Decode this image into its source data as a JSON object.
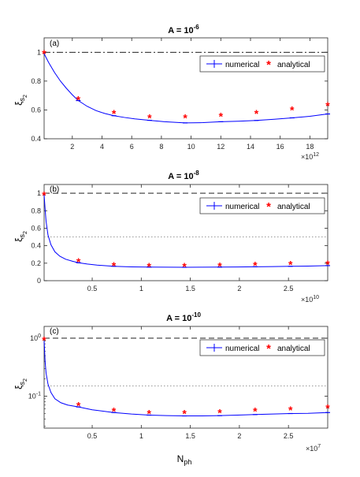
{
  "figure": {
    "xlabel_main": "N",
    "xlabel_sub": "ph",
    "ylabel_main": "ξ",
    "ylabel_sub1": "s",
    "ylabel_sub2": "2"
  },
  "colors": {
    "numerical": "#0000ff",
    "analytical": "#ff0000",
    "axes": "#262626"
  },
  "legend_labels": {
    "numerical": "numerical",
    "analytical": "analytical"
  },
  "chart_data": [
    {
      "type": "line",
      "panel_label": "(a)",
      "title_base": "A = 10",
      "title_exp": "-6",
      "xlim": [
        0.1,
        19.2
      ],
      "ylim": [
        0.4,
        1.1
      ],
      "yscale": "linear",
      "x_multiplier": {
        "base": "×10",
        "exp": "12"
      },
      "xticks": [
        2,
        4,
        6,
        8,
        10,
        12,
        14,
        16,
        18
      ],
      "xtick_labels": [
        "2",
        "4",
        "6",
        "8",
        "10",
        "12",
        "14",
        "16",
        "18"
      ],
      "yticks": [
        0.4,
        0.6,
        0.8,
        1
      ],
      "ytick_labels": [
        "0.4",
        "0.6",
        "0.8",
        "1"
      ],
      "ref_lines": [
        {
          "y": 1.0,
          "style": "dashdot"
        }
      ],
      "legend_position": "top-right",
      "series": [
        {
          "name": "numerical",
          "style": "line-errorbar",
          "x": [
            0.1,
            0.4,
            0.8,
            1.2,
            1.6,
            2.0,
            2.4,
            3.0,
            3.6,
            4.2,
            4.8,
            5.5,
            6.2,
            7.2,
            8.2,
            9.6,
            10.8,
            12.0,
            13.2,
            14.4,
            15.6,
            16.8,
            18.0,
            19.2
          ],
          "y": [
            0.99,
            0.93,
            0.86,
            0.8,
            0.75,
            0.705,
            0.665,
            0.625,
            0.595,
            0.575,
            0.56,
            0.548,
            0.538,
            0.528,
            0.518,
            0.51,
            0.512,
            0.518,
            0.522,
            0.527,
            0.535,
            0.545,
            0.556,
            0.572
          ],
          "errorbar_x": [
            2.4,
            4.8,
            7.2,
            9.6,
            12.0,
            14.4,
            16.8,
            19.2
          ],
          "errorbar_y": [
            0.665,
            0.56,
            0.528,
            0.51,
            0.518,
            0.527,
            0.545,
            0.572
          ]
        },
        {
          "name": "analytical",
          "style": "markers",
          "x": [
            0.1,
            2.4,
            4.8,
            7.2,
            9.6,
            12.0,
            14.4,
            16.8,
            19.2
          ],
          "y": [
            0.99,
            0.67,
            0.575,
            0.545,
            0.545,
            0.555,
            0.575,
            0.6,
            0.63
          ]
        }
      ]
    },
    {
      "type": "line",
      "panel_label": "(b)",
      "title_base": "A = 10",
      "title_exp": "-8",
      "xlim": [
        0.01,
        2.9
      ],
      "ylim": [
        0,
        1.1
      ],
      "yscale": "linear",
      "x_multiplier": {
        "base": "×10",
        "exp": "10"
      },
      "xticks": [
        0.5,
        1,
        1.5,
        2,
        2.5
      ],
      "xtick_labels": [
        "0.5",
        "1",
        "1.5",
        "2",
        "2.5"
      ],
      "yticks": [
        0,
        0.2,
        0.4,
        0.6,
        0.8,
        1
      ],
      "ytick_labels": [
        "0",
        "0.2",
        "0.4",
        "0.6",
        "0.8",
        "1"
      ],
      "ref_lines": [
        {
          "y": 1.0,
          "style": "dashed"
        },
        {
          "y": 0.5,
          "style": "dotted"
        }
      ],
      "legend_position": "top-right",
      "series": [
        {
          "name": "numerical",
          "style": "line-errorbar",
          "x": [
            0.01,
            0.02,
            0.03,
            0.05,
            0.08,
            0.12,
            0.17,
            0.23,
            0.3,
            0.36,
            0.45,
            0.55,
            0.72,
            0.9,
            1.08,
            1.26,
            1.44,
            1.62,
            1.8,
            1.98,
            2.16,
            2.34,
            2.52,
            2.7,
            2.9
          ],
          "y": [
            0.98,
            0.82,
            0.68,
            0.52,
            0.41,
            0.33,
            0.28,
            0.245,
            0.222,
            0.205,
            0.19,
            0.178,
            0.165,
            0.158,
            0.155,
            0.154,
            0.153,
            0.154,
            0.155,
            0.157,
            0.159,
            0.161,
            0.164,
            0.167,
            0.172
          ],
          "errorbar_x": [
            0.36,
            0.72,
            1.08,
            1.44,
            1.8,
            2.16,
            2.52,
            2.9
          ],
          "errorbar_y": [
            0.205,
            0.165,
            0.155,
            0.153,
            0.155,
            0.159,
            0.164,
            0.172
          ]
        },
        {
          "name": "analytical",
          "style": "markers",
          "x": [
            0.01,
            0.36,
            0.72,
            1.08,
            1.44,
            1.8,
            2.16,
            2.52,
            2.9
          ],
          "y": [
            0.98,
            0.215,
            0.172,
            0.162,
            0.162,
            0.167,
            0.175,
            0.183,
            0.19
          ]
        }
      ]
    },
    {
      "type": "line",
      "panel_label": "(c)",
      "title_base": "A = 10",
      "title_exp": "-10",
      "xlim": [
        0.01,
        2.9
      ],
      "ylim": [
        0.028,
        1.6
      ],
      "yscale": "log",
      "x_multiplier": {
        "base": "×10",
        "exp": "7"
      },
      "xticks": [
        0.5,
        1,
        1.5,
        2,
        2.5
      ],
      "xtick_labels": [
        "0.5",
        "1",
        "1.5",
        "2",
        "2.5"
      ],
      "yticks": [
        0.1,
        1
      ],
      "ytick_labels": [
        {
          "base": "10",
          "exp": "-1"
        },
        {
          "base": "10",
          "exp": "0"
        }
      ],
      "ref_lines": [
        {
          "y": 1.0,
          "style": "dashed"
        },
        {
          "y": 0.15,
          "style": "dotted"
        }
      ],
      "legend_position": "top-right",
      "series": [
        {
          "name": "numerical",
          "style": "line-errorbar",
          "x": [
            0.01,
            0.015,
            0.02,
            0.03,
            0.05,
            0.08,
            0.12,
            0.18,
            0.25,
            0.36,
            0.5,
            0.72,
            0.9,
            1.08,
            1.26,
            1.44,
            1.62,
            1.8,
            1.98,
            2.16,
            2.34,
            2.52,
            2.7,
            2.9
          ],
          "y": [
            0.9,
            0.6,
            0.4,
            0.25,
            0.16,
            0.115,
            0.09,
            0.077,
            0.07,
            0.065,
            0.058,
            0.052,
            0.049,
            0.047,
            0.046,
            0.0455,
            0.0455,
            0.046,
            0.047,
            0.048,
            0.049,
            0.05,
            0.0505,
            0.052
          ],
          "errorbar_x": [
            0.36,
            0.72,
            1.08,
            1.44,
            1.8,
            2.16,
            2.52,
            2.9
          ],
          "errorbar_y": [
            0.065,
            0.052,
            0.047,
            0.0455,
            0.046,
            0.048,
            0.05,
            0.052
          ]
        },
        {
          "name": "analytical",
          "style": "markers",
          "x": [
            0.01,
            0.36,
            0.72,
            1.08,
            1.44,
            1.8,
            2.16,
            2.52,
            2.9
          ],
          "y": [
            0.92,
            0.068,
            0.055,
            0.05,
            0.05,
            0.052,
            0.055,
            0.058,
            0.062
          ]
        }
      ]
    }
  ]
}
